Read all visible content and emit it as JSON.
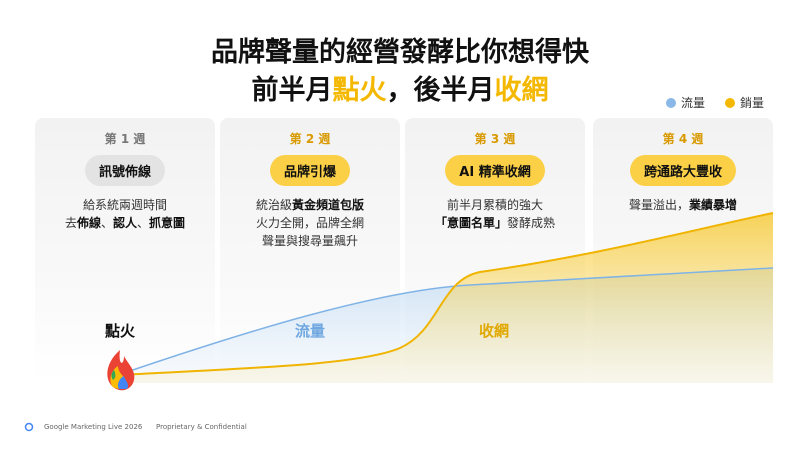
{
  "header": {
    "title": "品牌聲量的經營發酵比你想得快",
    "subtitle": [
      {
        "text": "前半月",
        "highlight": false
      },
      {
        "text": "點火",
        "highlight": true
      },
      {
        "text": "，後半月",
        "highlight": false
      },
      {
        "text": "收網",
        "highlight": true
      }
    ]
  },
  "legend": [
    {
      "name": "流量",
      "color": "#8ab8e8"
    },
    {
      "name": "銷量",
      "color": "#f5b800"
    }
  ],
  "weeks": [
    {
      "week": "第 1 週",
      "stage": "訊號佈線",
      "pill_color": "#e3e3e3",
      "week_color": "#777777",
      "lines": [
        [
          {
            "text": "給系統兩週時間",
            "bold": false
          }
        ],
        [
          {
            "text": "去",
            "bold": false
          },
          {
            "text": "佈線",
            "bold": true
          },
          {
            "text": "、",
            "bold": false
          },
          {
            "text": "認人",
            "bold": true
          },
          {
            "text": "、",
            "bold": false
          },
          {
            "text": "抓意圖",
            "bold": true
          }
        ]
      ]
    },
    {
      "week": "第 2 週",
      "stage": "品牌引爆",
      "pill_color": "#fbd046",
      "week_color": "#d99a00",
      "lines": [
        [
          {
            "text": "統治級",
            "bold": false
          },
          {
            "text": "黃金頻道包版",
            "bold": true
          }
        ],
        [
          {
            "text": "火力全開，品牌全網",
            "bold": false
          }
        ],
        [
          {
            "text": "聲量與搜尋量飆升",
            "bold": false
          }
        ]
      ]
    },
    {
      "week": "第 3 週",
      "stage": "AI 精準收網",
      "pill_color": "#fbd046",
      "week_color": "#d99a00",
      "lines": [
        [
          {
            "text": "前半月累積的強大",
            "bold": false
          }
        ],
        [
          {
            "text": "「意圖名單」",
            "bold": true
          },
          {
            "text": "發酵成熟",
            "bold": false
          }
        ]
      ]
    },
    {
      "week": "第 4 週",
      "stage": "跨通路大豐收",
      "pill_color": "#fbd046",
      "week_color": "#d99a00",
      "lines": [
        [
          {
            "text": "聲量溢出，",
            "bold": false
          },
          {
            "text": "業績暴增",
            "bold": true
          }
        ]
      ]
    }
  ],
  "chart_labels": {
    "ignite": "點火",
    "traffic": "流量",
    "harvest": "收網"
  },
  "footer": {
    "event": "Google Marketing Live 2026",
    "note": "Proprietary & Confidential"
  }
}
